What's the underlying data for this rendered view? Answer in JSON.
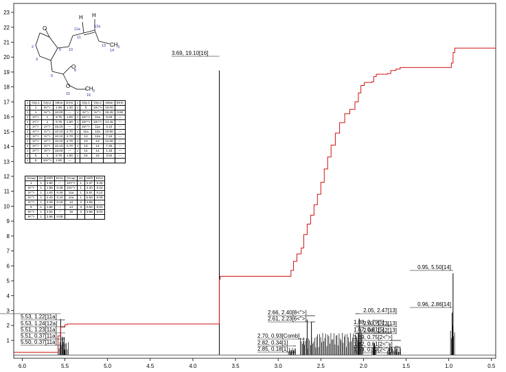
{
  "chart_data": {
    "type": "line",
    "x_axis": {
      "range": [
        6.1,
        0.45
      ],
      "reversed": true,
      "ticks": [
        "6.0",
        "5.5",
        "5.0",
        "4.5",
        "4.0",
        "3.5",
        "3.0",
        "2.5",
        "2.0",
        "1.5",
        "1.0",
        "0.5"
      ]
    },
    "y_axis": {
      "range": [
        -0.2,
        23.6
      ],
      "ticks": [
        "1",
        "2",
        "3",
        "4",
        "5",
        "6",
        "7",
        "8",
        "9",
        "10",
        "11",
        "12",
        "13",
        "14",
        "15",
        "16",
        "17",
        "18",
        "19",
        "20",
        "21",
        "22",
        "23"
      ]
    },
    "peak_labels": [
      {
        "text": "3.69, 19.10[16]",
        "x": 3.69,
        "h": 19.1
      },
      {
        "text": "5.55, 2.44[12a]",
        "x": 5.55,
        "h": 2.44
      },
      {
        "text": "5.53, 1.22[11a]",
        "x": 5.53,
        "h": 1.22
      },
      {
        "text": "5.53, 1.24[12a]",
        "x": 5.53,
        "h": 1.24
      },
      {
        "text": "5.51, 1.23[11a]",
        "x": 5.51,
        "h": 1.23
      },
      {
        "text": "5.51, 0.37[11a]",
        "x": 5.51,
        "h": 0.37
      },
      {
        "text": "5.50, 0.37[11a]",
        "x": 5.5,
        "h": 0.37
      },
      {
        "text": "2.66, 2.40[8<\">]",
        "x": 2.66,
        "h": 2.4
      },
      {
        "text": "2.05, 2.47[13]",
        "x": 2.05,
        "h": 2.47
      },
      {
        "text": "2.61, 2.23[6<\">]",
        "x": 2.61,
        "h": 2.23
      },
      {
        "text": "2.03, 1.73[13]",
        "x": 2.03,
        "h": 1.73
      },
      {
        "text": "2.06, 1.42[13]",
        "x": 2.06,
        "h": 1.42
      },
      {
        "text": "2.70, 0.93[Comb]",
        "x": 2.7,
        "h": 0.93
      },
      {
        "text": "2.82, 0.34[1]",
        "x": 2.82,
        "h": 0.34
      },
      {
        "text": "2.85, 0.18[1]",
        "x": 2.85,
        "h": 0.18
      },
      {
        "text": "1.88, 0.79[5]",
        "x": 1.88,
        "h": 0.79
      },
      {
        "text": "1.87, 0.81[5]",
        "x": 1.87,
        "h": 0.81
      },
      {
        "text": "1.69, 0.75[2<\">]",
        "x": 1.69,
        "h": 0.75
      },
      {
        "text": "1.62, 0.61[2<\">]",
        "x": 1.62,
        "h": 0.61
      },
      {
        "text": "1.59, 0.13[2<\">]",
        "x": 1.59,
        "h": 0.13
      },
      {
        "text": "0.95, 5.50[14]",
        "x": 0.95,
        "h": 5.5
      },
      {
        "text": "0.96, 2.86[14]",
        "x": 0.96,
        "h": 2.86
      }
    ],
    "integral_curve": [
      [
        6.1,
        0.2
      ],
      [
        5.6,
        0.2
      ],
      [
        5.58,
        1.3
      ],
      [
        5.55,
        1.9
      ],
      [
        5.5,
        2.05
      ],
      [
        5.47,
        2.1
      ],
      [
        3.7,
        2.1
      ],
      [
        3.69,
        5.1
      ],
      [
        3.68,
        5.3
      ],
      [
        2.88,
        5.3
      ],
      [
        2.85,
        5.7
      ],
      [
        2.82,
        6.3
      ],
      [
        2.78,
        6.8
      ],
      [
        2.73,
        7.2
      ],
      [
        2.7,
        8.1
      ],
      [
        2.66,
        8.8
      ],
      [
        2.62,
        9.4
      ],
      [
        2.58,
        10.1
      ],
      [
        2.54,
        10.8
      ],
      [
        2.5,
        11.6
      ],
      [
        2.46,
        12.5
      ],
      [
        2.42,
        13.3
      ],
      [
        2.38,
        14.1
      ],
      [
        2.33,
        14.9
      ],
      [
        2.28,
        15.6
      ],
      [
        2.22,
        16.2
      ],
      [
        2.16,
        16.5
      ],
      [
        2.1,
        17.0
      ],
      [
        2.06,
        17.6
      ],
      [
        2.03,
        18.1
      ],
      [
        1.99,
        18.3
      ],
      [
        1.9,
        18.35
      ],
      [
        1.88,
        18.7
      ],
      [
        1.85,
        18.85
      ],
      [
        1.72,
        18.9
      ],
      [
        1.68,
        19.1
      ],
      [
        1.62,
        19.2
      ],
      [
        1.57,
        19.3
      ],
      [
        1.0,
        19.3
      ],
      [
        0.97,
        19.6
      ],
      [
        0.95,
        20.3
      ],
      [
        0.93,
        20.6
      ],
      [
        0.45,
        20.7
      ]
    ],
    "coupling_table": {
      "columns": [
        "J",
        "Grp.1",
        "Grp.2",
        "Value",
        "Error",
        "J",
        "Grp.1",
        "Grp.2",
        "Value",
        "Error"
      ],
      "rows": [
        [
          "J",
          "1",
          "6<\">",
          "1.89",
          "1.30",
          "J",
          "5",
          "10<\">",
          "10.00",
          ""
        ],
        [
          "J",
          "1",
          "6<\">",
          "10.00",
          "---",
          "J",
          "6<\">",
          "6<\">",
          "15.45",
          "0.60"
        ],
        [
          "J",
          "2<\">",
          "1",
          "9.75",
          "1.50",
          "J",
          "10<\">",
          "11a",
          "5.03",
          "---"
        ],
        [
          "J",
          "2<\">",
          "1",
          "9.75",
          "1.50",
          "J",
          "10<\">",
          "10<\">",
          "14.45",
          "---"
        ],
        [
          "J",
          "2<\">",
          "2<\">",
          "15.20",
          "---",
          "J",
          "10<\">",
          "11a",
          "3.10",
          "---"
        ],
        [
          "J",
          "3<\">",
          "2<\">",
          "10.10",
          "2.70",
          "J",
          "11a",
          "12a",
          "10.80",
          "---"
        ],
        [
          "J",
          "3<\">",
          "2<\">",
          "10.10",
          "2.70",
          "J",
          "13",
          "12a",
          "7.24",
          "---"
        ],
        [
          "J",
          "3<\">",
          "2<\">",
          "10.10",
          "2.70",
          "J",
          "13",
          "13",
          "14.30",
          "---"
        ],
        [
          "J",
          "3<\">",
          "2<\">",
          "10.10",
          "2.70",
          "J",
          "13",
          "14",
          "7.30",
          "---"
        ],
        [
          "J",
          "3<\">",
          "3<\">",
          "18.00",
          "---",
          "J",
          "14",
          "14",
          "1.33",
          "---"
        ],
        [
          "J",
          "5",
          "1",
          "8.79",
          "1.80",
          "J",
          "16",
          "16",
          "3.52",
          "---"
        ],
        [
          "J",
          "5",
          "10<\">",
          "1.50",
          "---",
          "",
          "",
          "",
          "",
          ""
        ]
      ]
    },
    "shift_table": {
      "columns": [
        "Group",
        "nH",
        "Shift",
        "Error",
        "Group",
        "nH",
        "Shift",
        "Error"
      ],
      "rows": [
        [
          "1",
          "1",
          "2.80",
          "---",
          "10<\">",
          "1",
          "2.37",
          "0.25"
        ],
        [
          "2<\">",
          "1",
          "1.88",
          "0.28",
          "10<\">",
          "1",
          "2.20",
          "0.22"
        ],
        [
          "2<\">",
          "1",
          "1.63",
          "0.26",
          "11a",
          "1",
          "5.51",
          "0.12"
        ],
        [
          "3<\">",
          "1",
          "2.40",
          "0.24",
          "12a",
          "1",
          "5.58",
          "0.08"
        ],
        [
          "3<\">",
          "1",
          "2.29",
          "0.16",
          "13",
          "2",
          "2.05",
          "---"
        ],
        [
          "5",
          "1",
          "1.86",
          "---",
          "14",
          "3",
          "0.94",
          "0.01"
        ],
        [
          "6<\">",
          "1",
          "2.62",
          "---",
          "16",
          "3",
          "3.65",
          "0.03"
        ],
        [
          "6<\">",
          "1",
          "2.58",
          "0.08",
          "",
          "",
          "",
          ""
        ]
      ]
    },
    "molecule_labels": {
      "O1": "O",
      "H1": "H",
      "H2": "H",
      "CH3a": "CH",
      "sub3a": "3",
      "O2": "O",
      "O3": "O",
      "CH3b": "CH",
      "sub3b": "3",
      "n11a": "11a",
      "n12a": "12a",
      "n11": "11",
      "n10": "10",
      "n13": "13",
      "n14": "14",
      "n2": "2",
      "n3": "3",
      "n5": "5",
      "n6": "6",
      "n8": "8",
      "n15": "15",
      "n16": "16"
    }
  }
}
